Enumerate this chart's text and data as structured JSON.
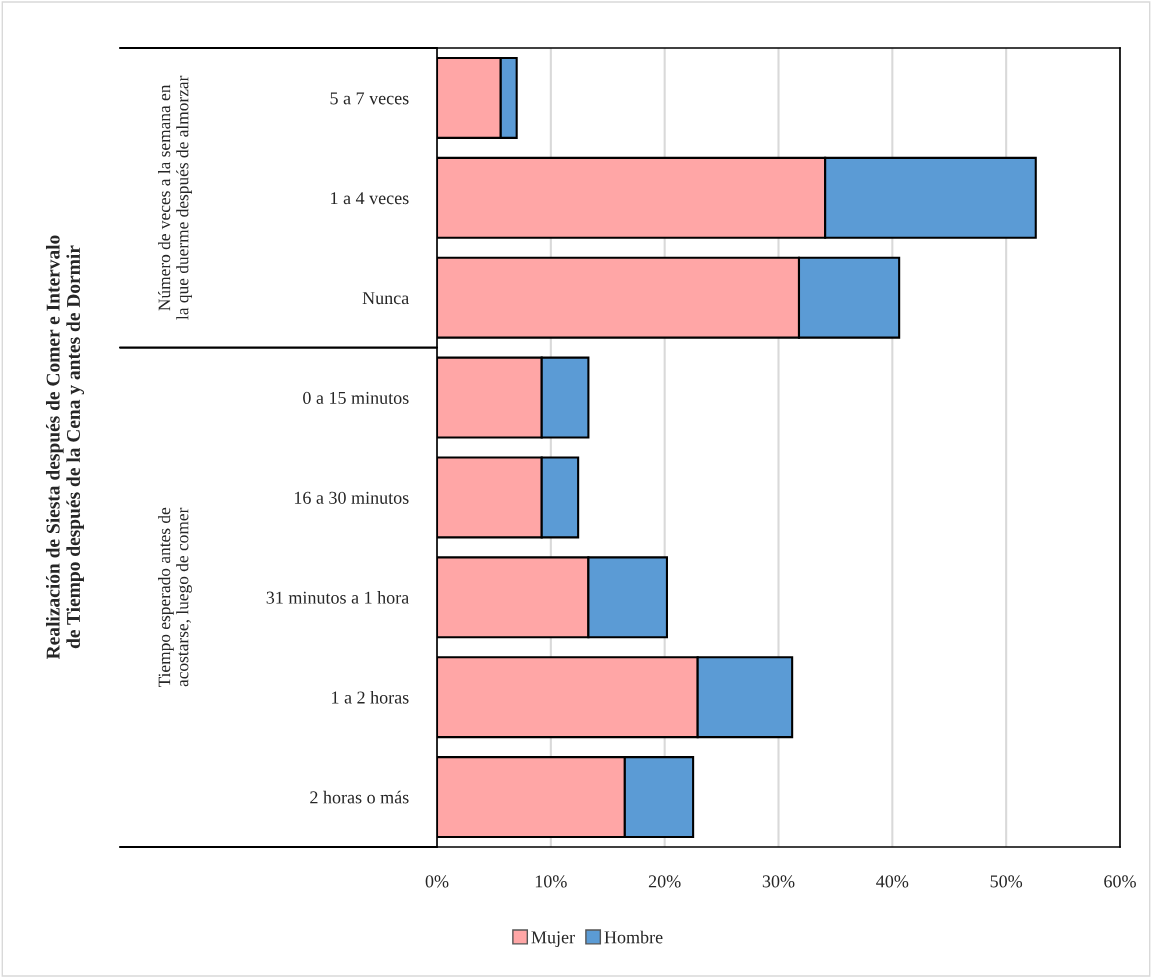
{
  "chart_data": {
    "type": "bar",
    "orientation": "horizontal",
    "stacked": true,
    "title": "Realización de Siesta después de Comer e Intervalo de Tiempo después de la Cena y antes de Dormir",
    "categories": [
      "5 a 7 veces",
      "1 a 4 veces",
      "Nunca",
      "0 a 15 minutos",
      "16 a 30 minutos",
      "31 minutos a 1 hora",
      "1 a 2 horas",
      "2 horas o más"
    ],
    "series": [
      {
        "name": "Mujer",
        "color": "#ffa6a6",
        "values": [
          5.6,
          34.1,
          31.8,
          9.2,
          9.2,
          13.3,
          22.9,
          16.5
        ]
      },
      {
        "name": "Hombre",
        "color": "#5b9bd5",
        "values": [
          1.4,
          18.5,
          8.8,
          4.1,
          3.2,
          6.9,
          8.3,
          6.0
        ]
      }
    ],
    "annotations": [
      "Número de veces a la semana en la que duerme después de almorzar",
      "Tiempo esperado antes de acostarse, luego de comer"
    ],
    "xlim": [
      0,
      60
    ],
    "xticks": [
      {
        "value": 0,
        "label": "0%"
      },
      {
        "value": 10,
        "label": "10%"
      },
      {
        "value": 20,
        "label": "20%"
      },
      {
        "value": 30,
        "label": "30%"
      },
      {
        "value": 40,
        "label": "40%"
      },
      {
        "value": 50,
        "label": "50%"
      },
      {
        "value": 60,
        "label": "60%"
      }
    ],
    "grid": "x",
    "legend": "bottom"
  }
}
